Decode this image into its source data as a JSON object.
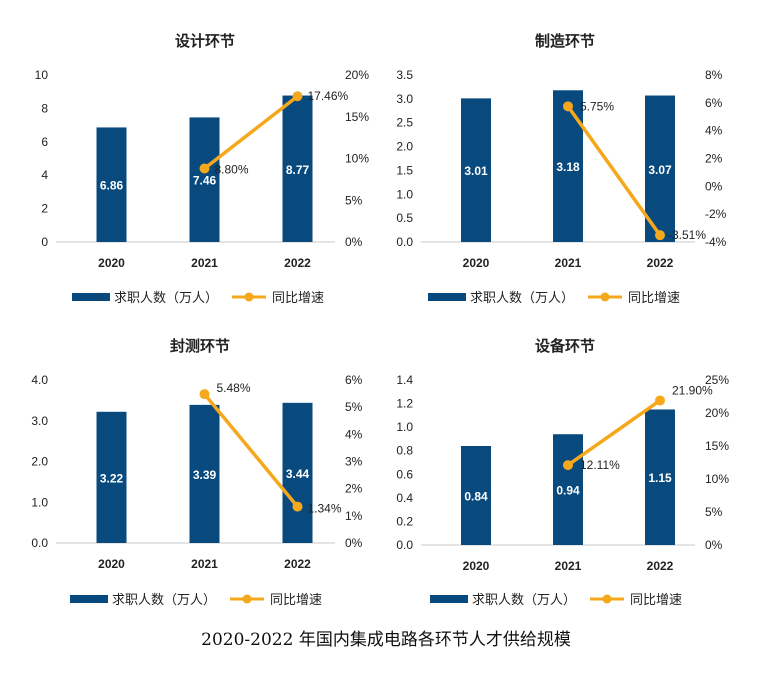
{
  "caption": "2020-2022 年国内集成电路各环节人才供给规模",
  "colors": {
    "bar": "#08497e",
    "line": "#f5a81c",
    "bar_text": "#ffffff",
    "text": "#222222"
  },
  "chart_data": [
    {
      "type": "bar",
      "title": "设计环节",
      "categories": [
        "2020",
        "2021",
        "2022"
      ],
      "ylim": [
        0,
        10
      ],
      "yticks": [
        "0",
        "2",
        "4",
        "6",
        "8",
        "10"
      ],
      "y2lim": [
        0,
        20
      ],
      "y2ticks": [
        "0%",
        "5%",
        "10%",
        "15%",
        "20%"
      ],
      "series": [
        {
          "name": "求职人数（万人）",
          "type": "bar",
          "axis": "left",
          "values": [
            6.86,
            7.46,
            8.77
          ],
          "labels": [
            "6.86",
            "7.46",
            "8.77"
          ]
        },
        {
          "name": "同比增速",
          "type": "line",
          "axis": "right",
          "values": [
            null,
            8.8,
            17.46
          ],
          "labels": [
            "",
            "8.80%",
            "17.46%"
          ]
        }
      ],
      "legend": "bottom"
    },
    {
      "type": "bar",
      "title": "制造环节",
      "categories": [
        "2020",
        "2021",
        "2022"
      ],
      "ylim": [
        0,
        3.5
      ],
      "yticks": [
        "0.0",
        "0.5",
        "1.0",
        "1.5",
        "2.0",
        "2.5",
        "3.0",
        "3.5"
      ],
      "y2lim": [
        -4,
        8
      ],
      "y2ticks": [
        "-4%",
        "-2%",
        "0%",
        "2%",
        "4%",
        "6%",
        "8%"
      ],
      "series": [
        {
          "name": "求职人数（万人）",
          "type": "bar",
          "axis": "left",
          "values": [
            3.01,
            3.18,
            3.07
          ],
          "labels": [
            "3.01",
            "3.18",
            "3.07"
          ]
        },
        {
          "name": "同比增速",
          "type": "line",
          "axis": "right",
          "values": [
            null,
            5.75,
            -3.51
          ],
          "labels": [
            "",
            "5.75%",
            "-3.51%"
          ]
        }
      ],
      "legend": "bottom"
    },
    {
      "type": "bar",
      "title": "封测环节",
      "categories": [
        "2020",
        "2021",
        "2022"
      ],
      "ylim": [
        0,
        4
      ],
      "yticks": [
        "0.0",
        "1.0",
        "2.0",
        "3.0",
        "4.0"
      ],
      "y2lim": [
        0,
        6
      ],
      "y2ticks": [
        "0%",
        "1%",
        "2%",
        "3%",
        "4%",
        "5%",
        "6%"
      ],
      "series": [
        {
          "name": "求职人数（万人）",
          "type": "bar",
          "axis": "left",
          "values": [
            3.22,
            3.39,
            3.44
          ],
          "labels": [
            "3.22",
            "3.39",
            "3.44"
          ]
        },
        {
          "name": "同比增速",
          "type": "line",
          "axis": "right",
          "values": [
            null,
            5.48,
            1.34
          ],
          "labels": [
            "",
            "5.48%",
            "1.34%"
          ]
        }
      ],
      "legend": "bottom"
    },
    {
      "type": "bar",
      "title": "设备环节",
      "categories": [
        "2020",
        "2021",
        "2022"
      ],
      "ylim": [
        0,
        1.4
      ],
      "yticks": [
        "0.0",
        "0.2",
        "0.4",
        "0.6",
        "0.8",
        "1.0",
        "1.2",
        "1.4"
      ],
      "y2lim": [
        0,
        25
      ],
      "y2ticks": [
        "0%",
        "5%",
        "10%",
        "15%",
        "20%",
        "25%"
      ],
      "series": [
        {
          "name": "求职人数（万人）",
          "type": "bar",
          "axis": "left",
          "values": [
            0.84,
            0.94,
            1.15
          ],
          "labels": [
            "0.84",
            "0.94",
            "1.15"
          ]
        },
        {
          "name": "同比增速",
          "type": "line",
          "axis": "right",
          "values": [
            null,
            12.11,
            21.9
          ],
          "labels": [
            "",
            "12.11%",
            "21.90%"
          ]
        }
      ],
      "legend": "bottom"
    }
  ]
}
